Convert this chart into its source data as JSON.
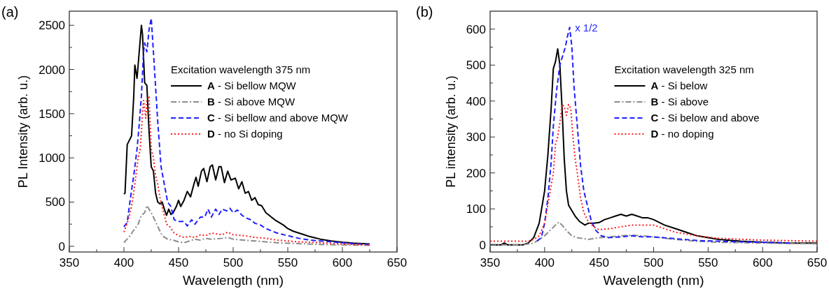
{
  "chart_data": [
    {
      "type": "line",
      "title": "(a)",
      "xlabel": "Wavelength (nm)",
      "ylabel": "PL Intensity (arb. u.)",
      "legend_title": "Excitation wavelength 375 nm",
      "legend": "right",
      "grid": false,
      "xlim": [
        350,
        650
      ],
      "xticks": [
        350,
        {
          "value": 375,
          "label": null
        },
        400,
        {
          "value": 425,
          "label": null
        },
        450,
        {
          "value": 475,
          "label": null
        },
        500,
        {
          "value": 525,
          "label": null
        },
        550,
        {
          "value": 575,
          "label": null
        },
        600,
        {
          "value": 625,
          "label": null
        },
        650
      ],
      "ylim": [
        -65,
        2660
      ],
      "yticks": [
        0,
        {
          "value": 250,
          "label": null
        },
        500,
        {
          "value": 750,
          "label": null
        },
        1000,
        {
          "value": 1250,
          "label": null
        },
        1500,
        {
          "value": 1750,
          "label": null
        },
        2000,
        {
          "value": 2250,
          "label": null
        },
        2500
      ],
      "series": [
        {
          "name": "A - Si bellow MQW",
          "color": "#000000",
          "line_style": "solid",
          "x": [
            400,
            401,
            403,
            405,
            407,
            409,
            410,
            412,
            414,
            416,
            417,
            419,
            421,
            423,
            425,
            427,
            429,
            431,
            433,
            435,
            437,
            439,
            441,
            443,
            445,
            448,
            450,
            452,
            455,
            458,
            461,
            464,
            466,
            468,
            471,
            473,
            476,
            479,
            481,
            484,
            487,
            489,
            492,
            495,
            498,
            502,
            505,
            508,
            511,
            514,
            517,
            520,
            523,
            526,
            530,
            534,
            538,
            542,
            546,
            550,
            555,
            560,
            565,
            570,
            575,
            580,
            590,
            600,
            610,
            625
          ],
          "values": [
            590,
            600,
            1150,
            1200,
            1250,
            1700,
            2050,
            1900,
            2200,
            2500,
            2400,
            1850,
            1820,
            1300,
            900,
            850,
            600,
            500,
            480,
            500,
            420,
            350,
            420,
            360,
            380,
            450,
            520,
            450,
            520,
            620,
            560,
            700,
            780,
            680,
            850,
            880,
            730,
            900,
            920,
            750,
            900,
            900,
            720,
            850,
            750,
            770,
            650,
            730,
            600,
            620,
            520,
            550,
            470,
            460,
            380,
            340,
            300,
            270,
            240,
            200,
            170,
            150,
            130,
            110,
            95,
            80,
            60,
            45,
            35,
            25
          ]
        },
        {
          "name": "B - Si above MQW",
          "color": "#8c8c8c",
          "line_style": "dashdot",
          "x": [
            400,
            405,
            410,
            413,
            416,
            419,
            421,
            423,
            425,
            427,
            430,
            435,
            440,
            445,
            450,
            455,
            460,
            465,
            470,
            475,
            480,
            490,
            495,
            500,
            510,
            520,
            530,
            540,
            560,
            580,
            600,
            625
          ],
          "values": [
            40,
            110,
            200,
            250,
            350,
            380,
            460,
            420,
            380,
            330,
            250,
            120,
            80,
            70,
            50,
            40,
            60,
            80,
            70,
            90,
            80,
            90,
            100,
            80,
            70,
            60,
            50,
            40,
            30,
            20,
            15,
            10
          ]
        },
        {
          "name": "C - Si bellow and above MQW",
          "color": "#1f1fff",
          "line_style": "dashed",
          "x": [
            400,
            403,
            406,
            409,
            412,
            414,
            416,
            418,
            419,
            421,
            423,
            425,
            427,
            429,
            431,
            434,
            437,
            440,
            443,
            446,
            450,
            455,
            458,
            462,
            465,
            470,
            474,
            477,
            480,
            484,
            487,
            490,
            494,
            497,
            500,
            504,
            508,
            512,
            516,
            520,
            525,
            530,
            540,
            550,
            560,
            570,
            580,
            590,
            600,
            610,
            625
          ],
          "values": [
            220,
            270,
            550,
            800,
            1100,
            1380,
            1700,
            2200,
            2300,
            2200,
            2450,
            2580,
            2200,
            1800,
            1400,
            900,
            700,
            500,
            450,
            300,
            280,
            280,
            230,
            300,
            250,
            330,
            330,
            420,
            330,
            420,
            360,
            420,
            400,
            430,
            380,
            410,
            350,
            320,
            300,
            260,
            240,
            200,
            150,
            120,
            90,
            70,
            60,
            50,
            40,
            30,
            20
          ]
        },
        {
          "name": "D - no Si doping",
          "color": "#ff1f1f",
          "line_style": "dotted",
          "x": [
            400,
            404,
            407,
            410,
            413,
            415,
            417,
            418,
            420,
            421,
            423,
            425,
            427,
            429,
            431,
            433,
            436,
            439,
            442,
            446,
            450,
            455,
            460,
            465,
            470,
            475,
            480,
            490,
            495,
            500,
            510,
            520,
            530,
            540,
            560,
            580,
            600,
            625
          ],
          "values": [
            160,
            300,
            450,
            700,
            1000,
            1100,
            1500,
            1650,
            1450,
            1650,
            1700,
            1100,
            1000,
            800,
            700,
            550,
            400,
            250,
            220,
            150,
            120,
            100,
            110,
            100,
            130,
            120,
            150,
            130,
            160,
            130,
            120,
            100,
            90,
            70,
            50,
            40,
            25,
            15
          ]
        }
      ]
    },
    {
      "type": "line",
      "title": "(b)",
      "xlabel": "Wavelength (nm)",
      "ylabel": "PL intensity (arb. u.)",
      "legend_title": "Excitation wavelength 325 nm",
      "legend": "right",
      "grid": false,
      "xlim": [
        350,
        650
      ],
      "xticks": [
        350,
        {
          "value": 375,
          "label": null
        },
        400,
        {
          "value": 425,
          "label": null
        },
        450,
        {
          "value": 475,
          "label": null
        },
        500,
        {
          "value": 525,
          "label": null
        },
        550,
        {
          "value": 575,
          "label": null
        },
        600,
        {
          "value": 625,
          "label": null
        },
        650
      ],
      "ylim": [
        -20,
        650
      ],
      "yticks": [
        0,
        {
          "value": 50,
          "label": null
        },
        100,
        {
          "value": 150,
          "label": null
        },
        200,
        {
          "value": 250,
          "label": null
        },
        300,
        {
          "value": 350,
          "label": null
        },
        400,
        {
          "value": 450,
          "label": null
        },
        500,
        {
          "value": 550,
          "label": null
        },
        600
      ],
      "annotations": [
        {
          "text": "x 1/2",
          "x": 424,
          "y": 605
        }
      ],
      "series": [
        {
          "name": "A - Si below",
          "color": "#000000",
          "line_style": "solid",
          "x": [
            350,
            360,
            363,
            366,
            380,
            385,
            390,
            395,
            400,
            403,
            406,
            408,
            410,
            412,
            414,
            416,
            418,
            420,
            422,
            425,
            428,
            432,
            437,
            440,
            445,
            450,
            455,
            460,
            465,
            470,
            475,
            480,
            485,
            490,
            495,
            500,
            510,
            520,
            530,
            540,
            550,
            560,
            580,
            600,
            625,
            650
          ],
          "values": [
            0,
            0,
            5,
            0,
            0,
            5,
            20,
            60,
            150,
            250,
            380,
            490,
            510,
            545,
            500,
            380,
            240,
            150,
            110,
            95,
            80,
            65,
            55,
            60,
            60,
            62,
            70,
            75,
            80,
            85,
            80,
            85,
            80,
            75,
            75,
            70,
            55,
            45,
            35,
            25,
            20,
            15,
            10,
            7,
            5,
            5
          ]
        },
        {
          "name": "B - Si above",
          "color": "#8c8c8c",
          "line_style": "dashdot",
          "x": [
            350,
            380,
            390,
            395,
            400,
            405,
            410,
            413,
            416,
            420,
            425,
            430,
            440,
            450,
            460,
            470,
            480,
            490,
            500,
            520,
            540,
            560,
            600,
            650
          ],
          "values": [
            0,
            0,
            5,
            15,
            25,
            40,
            55,
            63,
            55,
            40,
            25,
            20,
            15,
            20,
            22,
            25,
            27,
            25,
            22,
            15,
            10,
            7,
            5,
            3
          ]
        },
        {
          "name": "C - Si below and above",
          "color": "#1f1fff",
          "line_style": "dashed",
          "x": [
            393,
            397,
            400,
            403,
            406,
            408,
            411,
            414,
            417,
            419,
            421,
            423,
            425,
            427,
            430,
            433,
            436,
            440,
            443,
            447,
            452,
            458,
            470,
            480,
            490,
            500,
            520,
            540,
            560,
            600,
            625
          ],
          "values": [
            10,
            20,
            60,
            130,
            230,
            330,
            430,
            500,
            530,
            550,
            580,
            605,
            550,
            440,
            330,
            220,
            150,
            100,
            65,
            40,
            25,
            20,
            22,
            25,
            22,
            22,
            17,
            12,
            10,
            7,
            5
          ]
        },
        {
          "name": "D - no doping",
          "color": "#ff1f1f",
          "line_style": "dotted",
          "x": [
            350,
            385,
            390,
            395,
            400,
            404,
            408,
            410,
            412,
            414,
            416,
            418,
            420,
            422,
            424,
            426,
            428,
            430,
            433,
            436,
            440,
            445,
            450,
            460,
            470,
            480,
            490,
            500,
            510,
            520,
            540,
            560,
            600,
            650
          ],
          "values": [
            10,
            10,
            15,
            25,
            60,
            130,
            200,
            280,
            300,
            340,
            390,
            385,
            360,
            390,
            380,
            300,
            240,
            200,
            130,
            90,
            65,
            50,
            42,
            45,
            50,
            55,
            55,
            55,
            45,
            35,
            25,
            18,
            13,
            10
          ]
        }
      ]
    }
  ]
}
